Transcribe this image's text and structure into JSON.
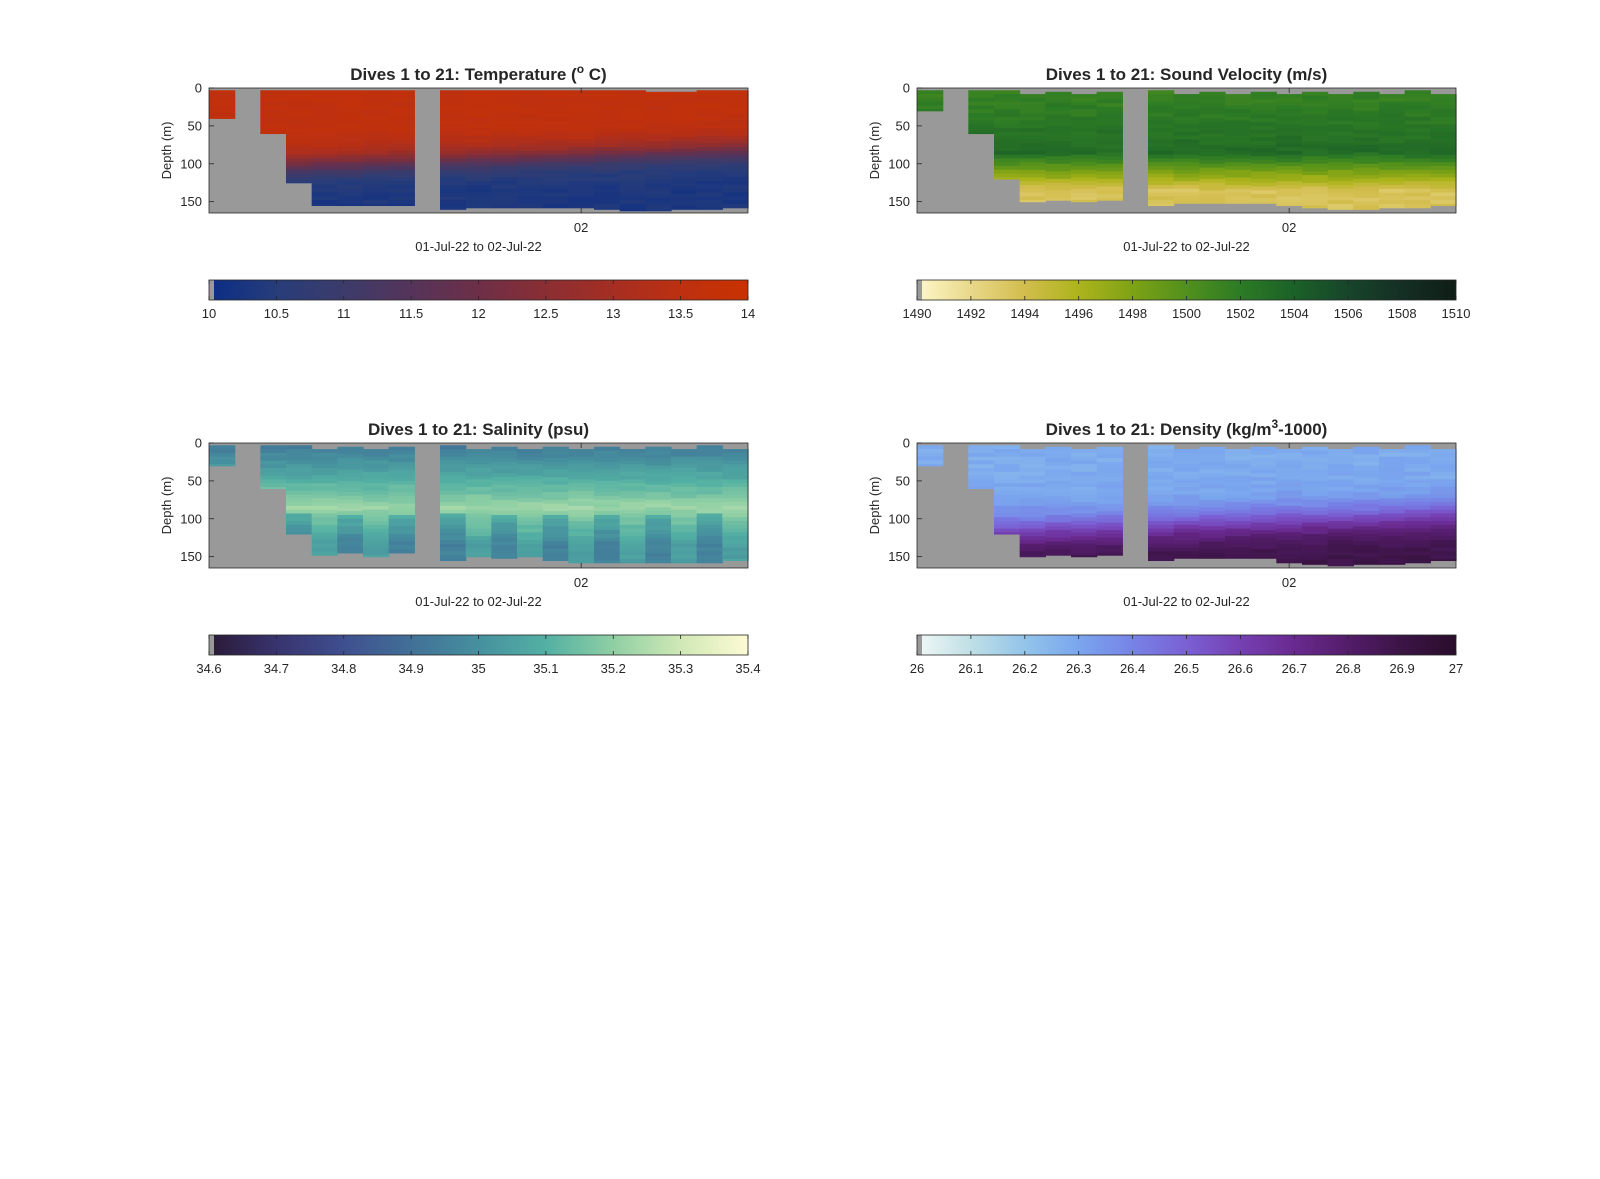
{
  "figure": {
    "background": "#ffffff",
    "missing_color": "#999999"
  },
  "chart_data": [
    {
      "type": "heatmap",
      "id": "temperature",
      "title_parts": [
        "Dives 1 to 21: Temperature (",
        "o",
        " C)"
      ],
      "title_sup": [
        false,
        true,
        false
      ],
      "ylabel": "Depth (m)",
      "xlabel": "01-Jul-22 to 02-Jul-22",
      "x_ticks": [
        {
          "dive": 15,
          "label": "02"
        }
      ],
      "y_ticks": [
        0,
        50,
        100,
        150
      ],
      "ylim": [
        0,
        165
      ],
      "y_reversed": true,
      "dives": 21,
      "missing_dives": [
        2,
        9
      ],
      "dive_max_depth": [
        40,
        0,
        60,
        125,
        155,
        155,
        155,
        155,
        0,
        160,
        158,
        158,
        158,
        158,
        158,
        160,
        162,
        162,
        160,
        160,
        158
      ],
      "dive_top_depth": [
        3,
        0,
        3,
        3,
        3,
        3,
        3,
        3,
        0,
        3,
        3,
        3,
        3,
        3,
        3,
        3,
        3,
        5,
        5,
        3,
        3
      ],
      "colorbar": {
        "min": 10,
        "max": 14,
        "ticks": [
          10,
          10.5,
          11,
          11.5,
          12,
          12.5,
          13,
          13.5,
          14
        ],
        "colors": [
          "#0b2d86",
          "#273d7a",
          "#3c3b6a",
          "#55345a",
          "#6d2f47",
          "#8a2e33",
          "#a52e22",
          "#bd3010",
          "#c93200"
        ]
      },
      "profile": {
        "surface_value": 13.6,
        "deep_value": 10.3,
        "thermocline_center": 95,
        "thermocline_width": 22
      }
    },
    {
      "type": "heatmap",
      "id": "sound-velocity",
      "title_parts": [
        "Dives 1 to 21: Sound Velocity (m/s)"
      ],
      "title_sup": [
        false
      ],
      "ylabel": "Depth (m)",
      "xlabel": "01-Jul-22 to 02-Jul-22",
      "x_ticks": [
        {
          "dive": 15,
          "label": "02"
        }
      ],
      "y_ticks": [
        0,
        50,
        100,
        150
      ],
      "ylim": [
        0,
        165
      ],
      "y_reversed": true,
      "dives": 21,
      "missing_dives": [
        2,
        9
      ],
      "dive_max_depth": [
        30,
        0,
        60,
        120,
        150,
        148,
        150,
        148,
        0,
        155,
        152,
        152,
        152,
        152,
        155,
        158,
        160,
        160,
        158,
        158,
        155
      ],
      "dive_top_depth": [
        3,
        0,
        3,
        3,
        8,
        5,
        8,
        5,
        0,
        3,
        8,
        5,
        8,
        5,
        8,
        5,
        8,
        5,
        8,
        3,
        8
      ],
      "colorbar": {
        "min": 1490,
        "max": 1510,
        "ticks": [
          1490,
          1492,
          1494,
          1496,
          1498,
          1500,
          1502,
          1504,
          1506,
          1508,
          1510
        ],
        "colors": [
          "#fdf8c8",
          "#e9d88a",
          "#d2bd4d",
          "#adb41c",
          "#7ea215",
          "#51901d",
          "#2c7b25",
          "#1b6128",
          "#17452a",
          "#142f24",
          "#0f1d16"
        ]
      },
      "profile": {
        "surface_value": 1501.2,
        "deep_value": 1493.6,
        "peak_value": 1503.2,
        "peak_depth": 85
      }
    },
    {
      "type": "heatmap",
      "id": "salinity",
      "title_parts": [
        "Dives 1 to 21: Salinity (psu)"
      ],
      "title_sup": [
        false
      ],
      "ylabel": "Depth (m)",
      "xlabel": "01-Jul-22 to 02-Jul-22",
      "x_ticks": [
        {
          "dive": 15,
          "label": "02"
        }
      ],
      "y_ticks": [
        0,
        50,
        100,
        150
      ],
      "ylim": [
        0,
        165
      ],
      "y_reversed": true,
      "dives": 21,
      "missing_dives": [
        2,
        9
      ],
      "dive_max_depth": [
        30,
        0,
        60,
        120,
        148,
        145,
        150,
        145,
        0,
        155,
        150,
        152,
        150,
        155,
        158,
        158,
        158,
        158,
        158,
        158,
        155
      ],
      "dive_top_depth": [
        3,
        0,
        3,
        3,
        8,
        5,
        8,
        5,
        0,
        3,
        8,
        5,
        8,
        5,
        8,
        5,
        8,
        5,
        8,
        3,
        8
      ],
      "colorbar": {
        "min": 34.6,
        "max": 35.4,
        "ticks": [
          34.6,
          34.7,
          34.8,
          34.9,
          35,
          35.1,
          35.2,
          35.3,
          35.4
        ],
        "colors": [
          "#2a1a36",
          "#38336e",
          "#3f4f8f",
          "#417097",
          "#46909e",
          "#53b0a3",
          "#8fcfa4",
          "#d0e8b6",
          "#fdfbd3"
        ]
      },
      "profile": {
        "surface_value": 34.92,
        "deep_value": 35.05,
        "peak_value": 35.22,
        "peak_depth": 85
      }
    },
    {
      "type": "heatmap",
      "id": "density",
      "title_parts": [
        "Dives 1 to 21: Density (kg/m",
        "3",
        "-1000)"
      ],
      "title_sup": [
        false,
        true,
        false
      ],
      "ylabel": "Depth (m)",
      "xlabel": "01-Jul-22 to 02-Jul-22",
      "x_ticks": [
        {
          "dive": 15,
          "label": "02"
        }
      ],
      "y_ticks": [
        0,
        50,
        100,
        150
      ],
      "ylim": [
        0,
        165
      ],
      "y_reversed": true,
      "dives": 21,
      "missing_dives": [
        2,
        9
      ],
      "dive_max_depth": [
        30,
        0,
        60,
        120,
        150,
        148,
        150,
        148,
        0,
        155,
        152,
        152,
        152,
        152,
        158,
        160,
        162,
        160,
        160,
        158,
        155
      ],
      "dive_top_depth": [
        3,
        0,
        3,
        3,
        8,
        5,
        8,
        5,
        0,
        3,
        8,
        5,
        8,
        5,
        8,
        5,
        8,
        5,
        8,
        3,
        8
      ],
      "colorbar": {
        "min": 26,
        "max": 27,
        "ticks": [
          26,
          26.1,
          26.2,
          26.3,
          26.4,
          26.5,
          26.6,
          26.7,
          26.8,
          26.9,
          27
        ],
        "colors": [
          "#f0f8f6",
          "#bfdfe6",
          "#93c4ea",
          "#7aa6ee",
          "#7783e6",
          "#7a60d4",
          "#7540b2",
          "#692a8f",
          "#531c69",
          "#3b1445",
          "#2a0d2b"
        ]
      },
      "profile": {
        "surface_value": 26.28,
        "deep_value": 26.9,
        "thermocline_center": 110,
        "thermocline_width": 30
      }
    }
  ]
}
